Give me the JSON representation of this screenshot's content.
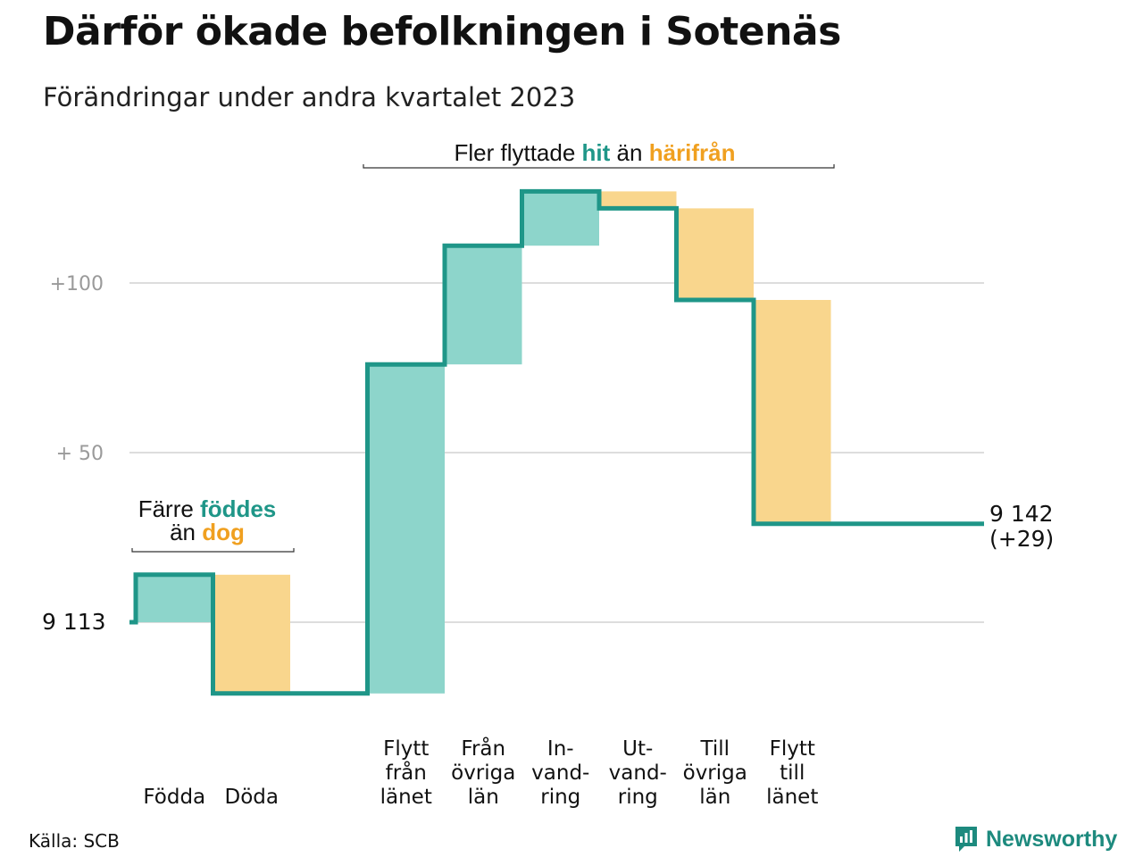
{
  "title": "Därför ökade befolkningen i Sotenäs",
  "subtitle": "Förändringar under andra kvartalet 2023",
  "source": "Källa: SCB",
  "brand": "Newsworthy",
  "colors": {
    "increase_fill": "#8dd5cb",
    "decrease_fill": "#f9d68d",
    "line": "#1f9688",
    "accent_increase": "#1f9688",
    "accent_decrease": "#f0a020",
    "grid": "#dddddd"
  },
  "chart_data": {
    "type": "waterfall",
    "start_value": 9113,
    "start_label": "9  113",
    "end_label_value": "9 142",
    "end_label_change": "(+29)",
    "y_tick_labels": [
      "+100",
      "+  50"
    ],
    "y_ticks": [
      100,
      50
    ],
    "ylim": [
      -30,
      130
    ],
    "categories": [
      {
        "lines": [
          "Födda"
        ],
        "change": 14
      },
      {
        "lines": [
          "Döda"
        ],
        "change": -35
      },
      {
        "lines": [
          "Flytt",
          "från",
          "länet"
        ],
        "change": 97
      },
      {
        "lines": [
          "Från",
          "övriga",
          "län"
        ],
        "change": 35
      },
      {
        "lines": [
          "In-",
          "vand-",
          "ring"
        ],
        "change": 16
      },
      {
        "lines": [
          "Ut-",
          "vand-",
          "ring"
        ],
        "change": -5
      },
      {
        "lines": [
          "Till",
          "övriga",
          "län"
        ],
        "change": -27
      },
      {
        "lines": [
          "Flytt",
          "till",
          "länet"
        ],
        "change": -66
      }
    ],
    "annotations": {
      "natural": {
        "line1": "Färre",
        "hi1": "föddes",
        "line2": "än",
        "hi2": "dog"
      },
      "migration": {
        "pre": "Fler flyttade",
        "hi1": "hit",
        "mid": "än",
        "hi2": "härifrån"
      }
    }
  }
}
